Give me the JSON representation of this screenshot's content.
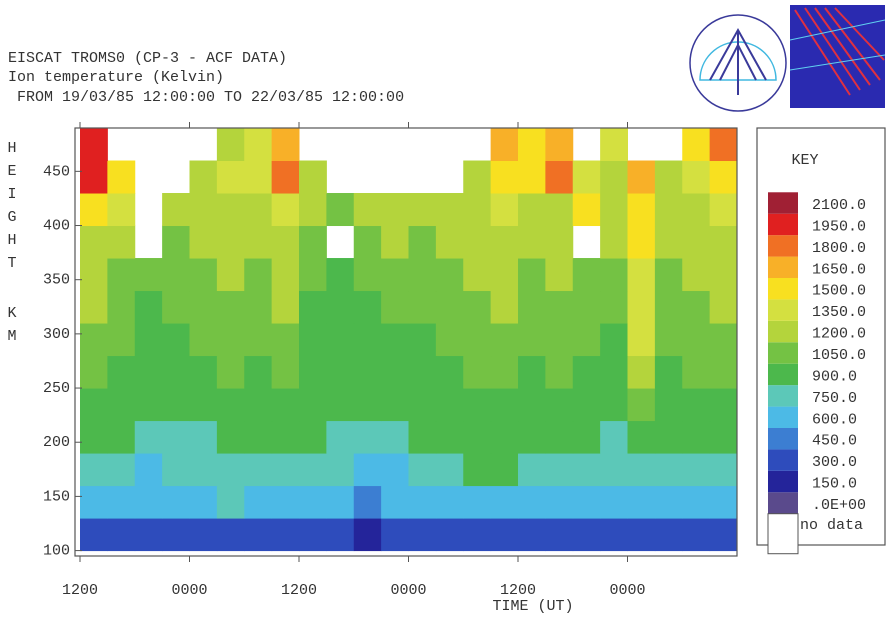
{
  "chart_data": {
    "type": "heatmap",
    "title": "EISCAT TROMS0 (CP-3 - ACF DATA)",
    "subtitle": "Ion temperature (Kelvin)",
    "period": " FROM 19/03/85 12:00:00 TO 22/03/85 12:00:00",
    "y_label_top": "HEIGHT",
    "y_label_bottom": "KM",
    "x_label": "TIME (UT)",
    "xlim": [
      0,
      72
    ],
    "xticks": [
      {
        "value": 0,
        "label": "1200"
      },
      {
        "value": 12,
        "label": "0000"
      },
      {
        "value": 24,
        "label": "1200"
      },
      {
        "value": 36,
        "label": "0000"
      },
      {
        "value": 48,
        "label": "1200"
      },
      {
        "value": 60,
        "label": "0000"
      }
    ],
    "ylim": [
      95,
      490
    ],
    "yticks": [
      100,
      150,
      200,
      250,
      300,
      350,
      400,
      450
    ],
    "xbins": [
      0,
      3,
      6,
      9,
      12,
      15,
      18,
      21,
      24,
      27,
      30,
      33,
      36,
      39,
      42,
      45,
      48,
      51,
      54,
      57,
      60,
      63,
      66,
      69,
      72
    ],
    "ybins": [
      100,
      130,
      160,
      190,
      220,
      250,
      280,
      310,
      340,
      370,
      400,
      430,
      460,
      490
    ],
    "values": [
      [
        350,
        330,
        300,
        320,
        340,
        350,
        330,
        320,
        340,
        300,
        280,
        300,
        320,
        330,
        350,
        330,
        340,
        350,
        320,
        330,
        400,
        320,
        330,
        300
      ],
      [
        650,
        650,
        600,
        650,
        700,
        750,
        650,
        650,
        650,
        600,
        550,
        600,
        650,
        650,
        700,
        650,
        650,
        650,
        650,
        600,
        700,
        600,
        650,
        650
      ],
      [
        800,
        750,
        700,
        750,
        800,
        850,
        800,
        850,
        800,
        750,
        650,
        700,
        800,
        850,
        900,
        900,
        850,
        850,
        800,
        750,
        800,
        750,
        800,
        800
      ],
      [
        950,
        900,
        800,
        850,
        850,
        900,
        900,
        950,
        900,
        850,
        800,
        850,
        900,
        900,
        950,
        950,
        950,
        950,
        900,
        850,
        1000,
        900,
        950,
        950
      ],
      [
        1000,
        950,
        900,
        950,
        950,
        1000,
        950,
        1000,
        950,
        900,
        900,
        950,
        950,
        950,
        1000,
        1000,
        950,
        1000,
        950,
        950,
        1100,
        950,
        1000,
        1000
      ],
      [
        1050,
        1000,
        950,
        950,
        1000,
        1050,
        1000,
        1050,
        950,
        900,
        950,
        950,
        950,
        1000,
        1050,
        1050,
        1000,
        1050,
        1000,
        950,
        1250,
        1000,
        1050,
        1050
      ],
      [
        1150,
        1050,
        950,
        1000,
        1050,
        1100,
        1050,
        1100,
        950,
        950,
        950,
        1000,
        1000,
        1050,
        1100,
        1150,
        1050,
        1100,
        1050,
        1000,
        1350,
        1050,
        1100,
        1150
      ],
      [
        1200,
        1100,
        1000,
        1050,
        1100,
        1150,
        1100,
        1200,
        1000,
        950,
        1000,
        1050,
        1050,
        1100,
        1150,
        1200,
        1100,
        1150,
        1100,
        1050,
        1400,
        1100,
        1150,
        1200
      ],
      [
        1250,
        1150,
        1050,
        1100,
        1150,
        1200,
        1150,
        1250,
        1050,
        1000,
        1050,
        1100,
        1100,
        1150,
        1200,
        1250,
        1150,
        1200,
        1150,
        1100,
        1450,
        1150,
        1200,
        1250
      ],
      [
        1300,
        1200,
        null,
        1100,
        1200,
        1250,
        1200,
        1300,
        1100,
        null,
        1100,
        1200,
        1150,
        1200,
        1250,
        1300,
        1200,
        1250,
        null,
        1200,
        1500,
        1200,
        1250,
        1300
      ],
      [
        1500,
        1400,
        null,
        1200,
        1300,
        1300,
        1250,
        1400,
        1200,
        1100,
        1200,
        1300,
        1250,
        1200,
        1300,
        1400,
        1300,
        1300,
        1500,
        1200,
        1600,
        1300,
        1300,
        1400
      ],
      [
        2000,
        1500,
        null,
        null,
        1300,
        1400,
        1400,
        1800,
        1300,
        null,
        null,
        null,
        null,
        null,
        1300,
        1600,
        1500,
        1800,
        1400,
        1300,
        1700,
        1300,
        1400,
        1600
      ],
      [
        2000,
        null,
        null,
        null,
        null,
        1300,
        1400,
        1700,
        null,
        null,
        null,
        null,
        null,
        null,
        null,
        1700,
        1500,
        1700,
        null,
        1400,
        null,
        null,
        1600,
        1800
      ]
    ],
    "legend_title": "KEY",
    "no_data_label": "no data",
    "colorscale": [
      {
        "value": 0,
        "label": ".0E+00",
        "color": "#5a4a8c"
      },
      {
        "value": 150,
        "label": "150.0",
        "color": "#24249a"
      },
      {
        "value": 300,
        "label": "300.0",
        "color": "#2e4cbc"
      },
      {
        "value": 450,
        "label": "450.0",
        "color": "#3c7ed2"
      },
      {
        "value": 600,
        "label": "600.0",
        "color": "#4cbae6"
      },
      {
        "value": 750,
        "label": "750.0",
        "color": "#5cc8b8"
      },
      {
        "value": 900,
        "label": "900.0",
        "color": "#4cb84c"
      },
      {
        "value": 1050,
        "label": "1050.0",
        "color": "#74c244"
      },
      {
        "value": 1200,
        "label": "1200.0",
        "color": "#b4d43c"
      },
      {
        "value": 1350,
        "label": "1350.0",
        "color": "#d4e040"
      },
      {
        "value": 1500,
        "label": "1500.0",
        "color": "#f8e020"
      },
      {
        "value": 1650,
        "label": "1650.0",
        "color": "#f8b028"
      },
      {
        "value": 1800,
        "label": "1800.0",
        "color": "#f07024"
      },
      {
        "value": 1950,
        "label": "1950.0",
        "color": "#e02020"
      },
      {
        "value": 2100,
        "label": "2100.0",
        "color": "#a02034"
      }
    ]
  }
}
